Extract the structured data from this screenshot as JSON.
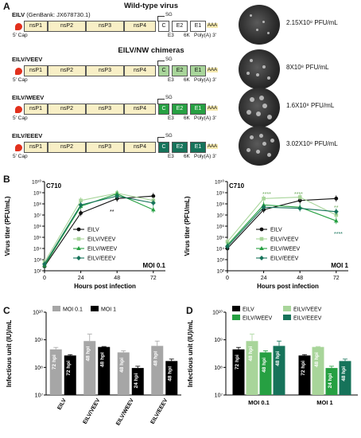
{
  "panels": {
    "a": "A",
    "b": "B",
    "c": "C",
    "d": "D"
  },
  "panel_a": {
    "wild_type_title": "Wild-type virus",
    "chimera_title": "EILV/NW chimeras",
    "five_prime_cap": "5' Cap",
    "sg_label": "SG",
    "ns_proteins": [
      "nsP1",
      "nsP2",
      "nsP3",
      "nsP4"
    ],
    "structural_proteins": [
      "C",
      "E2",
      "E1"
    ],
    "small_proteins": [
      "E3",
      "6K"
    ],
    "polya": "Poly(A) 3'",
    "aaa": "AAA",
    "constructs": [
      {
        "name": "EILV",
        "genbank": "(GenBank: JX678730.1)",
        "titer": "2.15X10⁸ PFU/mL",
        "color": "#ffffff"
      },
      {
        "name": "EILV/VEEV",
        "genbank": "",
        "titer": "8X10⁸ PFU/mL",
        "color": "#a8d59a"
      },
      {
        "name": "EILV/WEEV",
        "genbank": "",
        "titer": "1.6X10⁸ PFU/mL",
        "color": "#26a042"
      },
      {
        "name": "EILV/EEEV",
        "genbank": "",
        "titer": "3.02X10⁸ PFU/mL",
        "color": "#16735a"
      }
    ]
  },
  "chart_data": [
    {
      "type": "line",
      "panel": "B-left",
      "cell_line": "C710",
      "condition": "MOI 0.1",
      "xlabel": "Hours post infection",
      "ylabel": "Virus titer (PFU/mL)",
      "x": [
        0,
        24,
        48,
        72
      ],
      "xlim": [
        0,
        80
      ],
      "yscale": "log",
      "ylim": [
        100,
        10000000000
      ],
      "ytick_labels": [
        "10²",
        "10³",
        "10⁴",
        "10⁵",
        "10⁶",
        "10⁷",
        "10⁸",
        "10⁹",
        "10¹⁰"
      ],
      "annotations": [
        "**"
      ],
      "series": [
        {
          "name": "EILV",
          "color": "#111111",
          "values": [
            250,
            15000000,
            300000000,
            500000000
          ]
        },
        {
          "name": "EILV/VEEV",
          "color": "#a8d59a",
          "values": [
            600,
            200000000,
            900000000,
            200000000
          ]
        },
        {
          "name": "EILV/WEEV",
          "color": "#26a042",
          "values": [
            300,
            60000000,
            800000000,
            30000000
          ]
        },
        {
          "name": "EILV/EEEV",
          "color": "#16735a",
          "values": [
            400,
            80000000,
            500000000,
            120000000
          ]
        }
      ]
    },
    {
      "type": "line",
      "panel": "B-right",
      "cell_line": "C710",
      "condition": "MOI 1",
      "xlabel": "Hours post infection",
      "ylabel": "Virus titer (PFU/mL)",
      "x": [
        0,
        24,
        48,
        72
      ],
      "xlim": [
        0,
        80
      ],
      "yscale": "log",
      "ylim": [
        100,
        10000000000
      ],
      "ytick_labels": [
        "10²",
        "10³",
        "10⁴",
        "10⁵",
        "10⁶",
        "10⁷",
        "10⁸",
        "10⁹",
        "10¹⁰"
      ],
      "annotations": [
        "****",
        "****",
        "**",
        "****"
      ],
      "series": [
        {
          "name": "EILV",
          "color": "#111111",
          "values": [
            10000,
            30000000,
            200000000,
            300000000
          ]
        },
        {
          "name": "EILV/VEEV",
          "color": "#a8d59a",
          "values": [
            40000,
            300000000,
            400000000,
            10000000
          ]
        },
        {
          "name": "EILV/WEEV",
          "color": "#26a042",
          "values": [
            20000,
            80000000,
            50000000,
            3000000
          ]
        },
        {
          "name": "EILV/EEEV",
          "color": "#16735a",
          "values": [
            15000,
            50000000,
            40000000,
            20000000
          ]
        }
      ]
    },
    {
      "type": "bar",
      "panel": "C",
      "ylabel": "Infectious unit (IU)/mL",
      "yscale": "log",
      "ylim": [
        10000000,
        10000000000
      ],
      "ytick_labels": [
        "10⁷",
        "10⁸",
        "10⁹",
        "10¹⁰"
      ],
      "categories": [
        "EILV",
        "EILV/VEEV",
        "EILV/WEEV",
        "EILV/EEEV"
      ],
      "series": [
        {
          "name": "MOI 0.1",
          "color": "#a6a6a6",
          "values": [
            450000000,
            900000000,
            350000000,
            600000000
          ],
          "errors": [
            80000000,
            700000000,
            50000000,
            300000000
          ],
          "labels": [
            "72 hpi",
            "48 hpi",
            "48 hpi",
            "48 hpi"
          ]
        },
        {
          "name": "MOI 1",
          "color": "#000000",
          "values": [
            270000000,
            550000000,
            95000000,
            170000000
          ],
          "errors": [
            20000000,
            20000000,
            15000000,
            30000000
          ],
          "labels": [
            "72 hpi",
            "48 hpi",
            "24 hpi",
            "48 hpi"
          ]
        }
      ]
    },
    {
      "type": "bar",
      "panel": "D",
      "ylabel": "Infectious unit (IU)/mL",
      "yscale": "log",
      "ylim": [
        10000000,
        10000000000
      ],
      "ytick_labels": [
        "10⁷",
        "10⁸",
        "10⁹",
        "10¹⁰"
      ],
      "categories": [
        "MOI 0.1",
        "MOI 1"
      ],
      "series": [
        {
          "name": "EILV",
          "color": "#000000",
          "values": [
            450000000,
            270000000
          ],
          "errors": [
            80000000,
            20000000
          ],
          "labels": [
            "72 hpi",
            "72 hpi"
          ]
        },
        {
          "name": "EILV/VEEV",
          "color": "#a8d59a",
          "values": [
            900000000,
            550000000
          ],
          "errors": [
            700000000,
            20000000
          ],
          "labels": [
            "48 hpi",
            "48 hpi"
          ]
        },
        {
          "name": "EILV/WEEV",
          "color": "#26a042",
          "values": [
            350000000,
            95000000
          ],
          "errors": [
            50000000,
            15000000
          ],
          "labels": [
            "48 hpi",
            "24 hpi"
          ]
        },
        {
          "name": "EILV/EEEV",
          "color": "#16735a",
          "values": [
            600000000,
            170000000
          ],
          "errors": [
            300000000,
            30000000
          ],
          "labels": [
            "48 hpi",
            "48 hpi"
          ]
        }
      ]
    }
  ]
}
